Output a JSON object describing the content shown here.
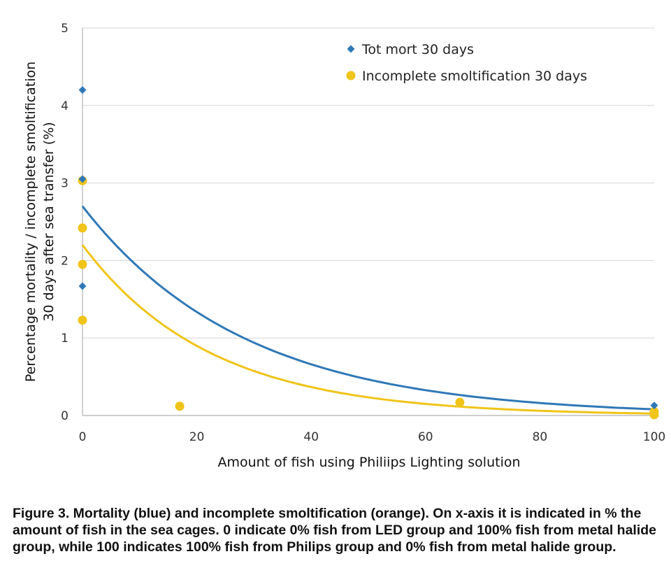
{
  "chart_data": {
    "type": "scatter",
    "title": "",
    "xlabel": "Amount of fish using Philiips Lighting solution",
    "ylabel": [
      "Percentage mortality / incomplete smoltification",
      "30 days after sea transfer (%)"
    ],
    "xlim": [
      0,
      100
    ],
    "ylim": [
      0,
      5
    ],
    "x_ticks": [
      "0",
      "20",
      "40",
      "60",
      "80",
      "100"
    ],
    "y_ticks": [
      "0",
      "1",
      "2",
      "3",
      "4",
      "5"
    ],
    "grid": "horizontal",
    "legend_position": "top-right",
    "series": [
      {
        "name": "Tot mort 30 days",
        "color": "#2f78b7",
        "marker": "diamond",
        "points": [
          [
            0,
            4.2
          ],
          [
            0,
            3.05
          ],
          [
            0,
            1.67
          ],
          [
            100,
            0.13
          ]
        ],
        "trendline": {
          "type": "exponential",
          "start": [
            0,
            2.7
          ],
          "end": [
            100,
            0.08
          ]
        }
      },
      {
        "name": "Incomplete smoltification 30 days",
        "color": "#f0c419",
        "marker": "circle",
        "points": [
          [
            0,
            3.03
          ],
          [
            0,
            2.42
          ],
          [
            0,
            1.95
          ],
          [
            0,
            1.23
          ],
          [
            17,
            0.12
          ],
          [
            66,
            0.17
          ],
          [
            100,
            0.05
          ],
          [
            100,
            0.01
          ]
        ],
        "trendline": {
          "type": "exponential",
          "start": [
            0,
            2.2
          ],
          "end": [
            100,
            0.025
          ]
        }
      }
    ]
  },
  "caption": "Figure 3. Mortality (blue) and incomplete smoltification (orange). On x-axis it is indicated in % the amount of fish in the sea cages. 0 indicate 0% fish from LED group and 100% fish from metal halide group, while 100 indicates 100% fish from Philips group and 0% fish from metal halide group."
}
